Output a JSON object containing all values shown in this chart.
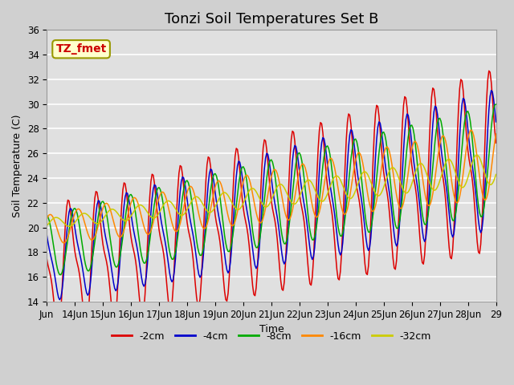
{
  "title": "Tonzi Soil Temperatures Set B",
  "xlabel": "Time",
  "ylabel": "Soil Temperature (C)",
  "ylim": [
    14,
    36
  ],
  "tick_labels": [
    "Jun",
    "14Jun",
    "15Jun",
    "16Jun",
    "17Jun",
    "18Jun",
    "19Jun",
    "20Jun",
    "21Jun",
    "22Jun",
    "23Jun",
    "24Jun",
    "25Jun",
    "26Jun",
    "27Jun",
    "28Jun",
    "29"
  ],
  "series_labels": [
    "-2cm",
    "-4cm",
    "-8cm",
    "-16cm",
    "-32cm"
  ],
  "series_colors": [
    "#dd0000",
    "#0000cc",
    "#00aa00",
    "#ff8800",
    "#cccc00"
  ],
  "annotation_text": "TZ_fmet",
  "annotation_color": "#cc0000",
  "annotation_bg": "#ffffcc",
  "background_color": "#d0d0d0",
  "plot_bg": "#e0e0e0",
  "grid_color": "#ffffff",
  "title_fontsize": 13,
  "label_fontsize": 9,
  "tick_fontsize": 8.5
}
